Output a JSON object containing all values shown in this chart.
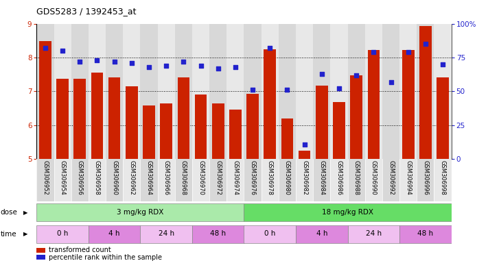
{
  "title": "GDS5283 / 1392453_at",
  "samples": [
    "GSM306952",
    "GSM306954",
    "GSM306956",
    "GSM306958",
    "GSM306960",
    "GSM306962",
    "GSM306964",
    "GSM306966",
    "GSM306968",
    "GSM306970",
    "GSM306972",
    "GSM306974",
    "GSM306976",
    "GSM306978",
    "GSM306980",
    "GSM306982",
    "GSM306984",
    "GSM306986",
    "GSM306988",
    "GSM306990",
    "GSM306992",
    "GSM306994",
    "GSM306996",
    "GSM306998"
  ],
  "bar_values": [
    8.48,
    7.38,
    7.38,
    7.55,
    7.42,
    7.15,
    6.58,
    6.65,
    7.42,
    6.9,
    6.65,
    6.47,
    6.93,
    8.25,
    6.2,
    5.25,
    7.18,
    6.68,
    7.48,
    8.22,
    4.9,
    8.22,
    8.93,
    7.42
  ],
  "dot_values": [
    82,
    80,
    72,
    73,
    72,
    71,
    68,
    69,
    72,
    69,
    67,
    68,
    51,
    82,
    51,
    11,
    63,
    52,
    62,
    79,
    57,
    79,
    85,
    70
  ],
  "ylim_left": [
    5,
    9
  ],
  "ylim_right": [
    0,
    100
  ],
  "yticks_left": [
    5,
    6,
    7,
    8,
    9
  ],
  "yticks_right": [
    0,
    25,
    50,
    75,
    100
  ],
  "ytick_labels_right": [
    "0",
    "25",
    "50",
    "75",
    "100%"
  ],
  "bar_color": "#cc2200",
  "dot_color": "#2222cc",
  "col_bg_odd": "#d8d8d8",
  "col_bg_even": "#e8e8e8",
  "dose_groups": [
    {
      "label": "3 mg/kg RDX",
      "start": 0,
      "end": 12,
      "color": "#aaeaaa"
    },
    {
      "label": "18 mg/kg RDX",
      "start": 12,
      "end": 24,
      "color": "#66dd66"
    }
  ],
  "time_groups": [
    {
      "label": "0 h",
      "start": 0,
      "end": 3,
      "color": "#f0c0f0"
    },
    {
      "label": "4 h",
      "start": 3,
      "end": 6,
      "color": "#dd88dd"
    },
    {
      "label": "24 h",
      "start": 6,
      "end": 9,
      "color": "#f0c0f0"
    },
    {
      "label": "48 h",
      "start": 9,
      "end": 12,
      "color": "#dd88dd"
    },
    {
      "label": "0 h",
      "start": 12,
      "end": 15,
      "color": "#f0c0f0"
    },
    {
      "label": "4 h",
      "start": 15,
      "end": 18,
      "color": "#dd88dd"
    },
    {
      "label": "24 h",
      "start": 18,
      "end": 21,
      "color": "#f0c0f0"
    },
    {
      "label": "48 h",
      "start": 21,
      "end": 24,
      "color": "#dd88dd"
    }
  ],
  "legend": [
    {
      "label": "transformed count",
      "color": "#cc2200"
    },
    {
      "label": "percentile rank within the sample",
      "color": "#2222cc"
    }
  ],
  "left_ytick_color": "#cc2200",
  "right_ytick_color": "#2222cc"
}
